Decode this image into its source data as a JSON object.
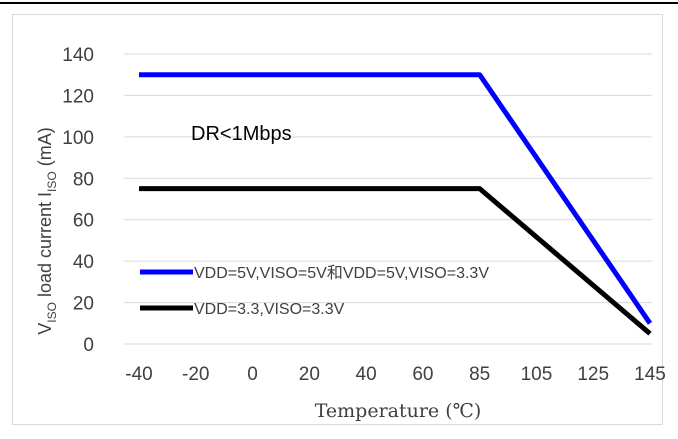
{
  "chart_data": {
    "type": "line",
    "x_tick_labels": [
      "-40",
      "-20",
      "0",
      "20",
      "40",
      "60",
      "85",
      "105",
      "125",
      "145"
    ],
    "y_tick_labels": [
      "0",
      "20",
      "40",
      "60",
      "80",
      "100",
      "120",
      "140"
    ],
    "ylim": [
      0,
      140
    ],
    "xlabel": "Temperature (℃)",
    "ylabel": {
      "prefix": "V",
      "sub1": "ISO",
      "middle": " load current I",
      "sub2": "ISO",
      "suffix": " (mA)"
    },
    "annotation": "DR<1Mbps",
    "grid": true,
    "legend_position": "bottom-left",
    "series": [
      {
        "name": "VDD=5V,VISO=5V和VDD=5V,VISO=3.3V",
        "color": "#0000ff",
        "points": [
          {
            "x": "-40",
            "y": 130
          },
          {
            "x": "85",
            "y": 130
          },
          {
            "x": "145",
            "y": 10
          }
        ]
      },
      {
        "name": "VDD=3.3,VISO=3.3V",
        "color": "#000000",
        "points": [
          {
            "x": "-40",
            "y": 75
          },
          {
            "x": "85",
            "y": 75
          },
          {
            "x": "145",
            "y": 5
          }
        ]
      }
    ]
  }
}
